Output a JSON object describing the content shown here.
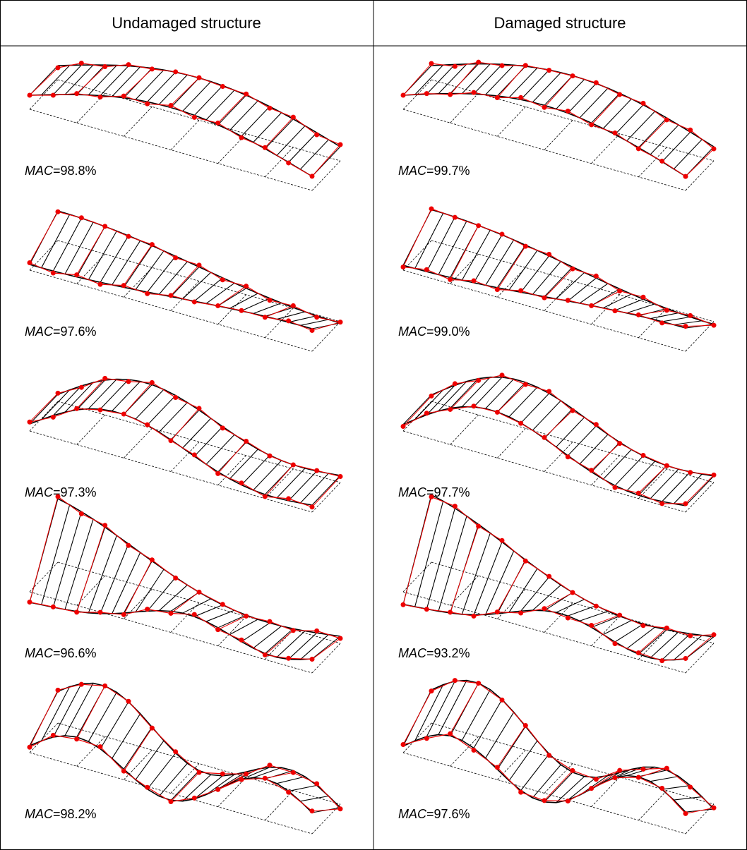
{
  "table": {
    "headers": [
      "Undamaged structure",
      "Damaged structure"
    ],
    "rows": [
      [
        {
          "symbol": "MAC",
          "text": "=98.8%"
        },
        {
          "symbol": "MAC",
          "text": "=99.7%"
        }
      ],
      [
        {
          "symbol": "MAC",
          "text": "=97.6%"
        },
        {
          "symbol": "MAC",
          "text": "=99.0%"
        }
      ],
      [
        {
          "symbol": "MAC",
          "text": "=97.3%"
        },
        {
          "symbol": "MAC",
          "text": "=97.7%"
        }
      ],
      [
        {
          "symbol": "MAC",
          "text": "=96.6%"
        },
        {
          "symbol": "MAC",
          "text": "=93.2%"
        }
      ],
      [
        {
          "symbol": "MAC",
          "text": "=98.2%"
        },
        {
          "symbol": "MAC",
          "text": "=97.6%"
        }
      ]
    ]
  }
}
